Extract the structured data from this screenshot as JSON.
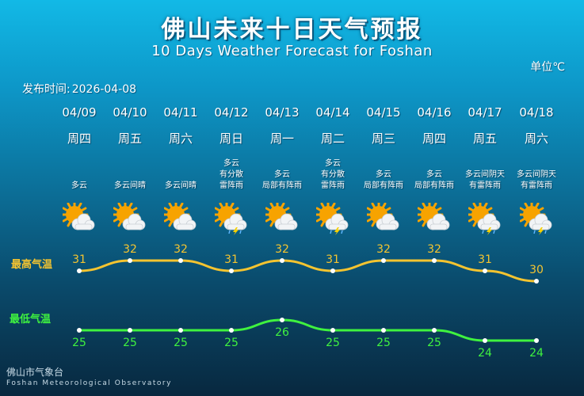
{
  "header": {
    "title_cn": "佛山未来十日天气预报",
    "title_en": "10 Days Weather Forecast for Foshan",
    "unit": "单位℃",
    "release_label": "发布时间:",
    "release_date": "2026-04-08"
  },
  "labels": {
    "high": "最高气温",
    "low": "最低气温"
  },
  "days": [
    {
      "date": "04/09",
      "weekday": "周四",
      "desc": [
        "多云"
      ],
      "icon": "partly-cloudy-icon",
      "high": "31",
      "low": "25"
    },
    {
      "date": "04/10",
      "weekday": "周五",
      "desc": [
        "多云间晴"
      ],
      "icon": "partly-cloudy-icon",
      "high": "32",
      "low": "25"
    },
    {
      "date": "04/11",
      "weekday": "周六",
      "desc": [
        "多云间晴"
      ],
      "icon": "partly-cloudy-icon",
      "high": "32",
      "low": "25"
    },
    {
      "date": "04/12",
      "weekday": "周日",
      "desc": [
        "多云",
        "有分散",
        "雷阵雨"
      ],
      "icon": "thunder-shower-icon",
      "high": "31",
      "low": "25"
    },
    {
      "date": "04/13",
      "weekday": "周一",
      "desc": [
        "多云",
        "局部有阵雨"
      ],
      "icon": "partly-cloudy-icon",
      "high": "32",
      "low": "26"
    },
    {
      "date": "04/14",
      "weekday": "周二",
      "desc": [
        "多云",
        "有分散",
        "雷阵雨"
      ],
      "icon": "thunder-shower-icon",
      "high": "31",
      "low": "25"
    },
    {
      "date": "04/15",
      "weekday": "周三",
      "desc": [
        "多云",
        "局部有阵雨"
      ],
      "icon": "partly-cloudy-icon",
      "high": "32",
      "low": "25"
    },
    {
      "date": "04/16",
      "weekday": "周四",
      "desc": [
        "多云",
        "局部有阵雨"
      ],
      "icon": "partly-cloudy-icon",
      "high": "32",
      "low": "25"
    },
    {
      "date": "04/17",
      "weekday": "周五",
      "desc": [
        "多云间阴天",
        "有雷阵雨"
      ],
      "icon": "thunder-shower-icon",
      "high": "31",
      "low": "24"
    },
    {
      "date": "04/18",
      "weekday": "周六",
      "desc": [
        "多云间阴天",
        "有雷阵雨"
      ],
      "icon": "thunder-shower-icon",
      "high": "30",
      "low": "24"
    }
  ],
  "footer": {
    "org_cn": "佛山市气象台",
    "org_en": "Foshan Meteorological Observatory"
  },
  "colors": {
    "high_line": "#f4c430",
    "low_line": "#3ff23f",
    "sun": "#f7a300",
    "cloud": "#f2f4f6"
  }
}
